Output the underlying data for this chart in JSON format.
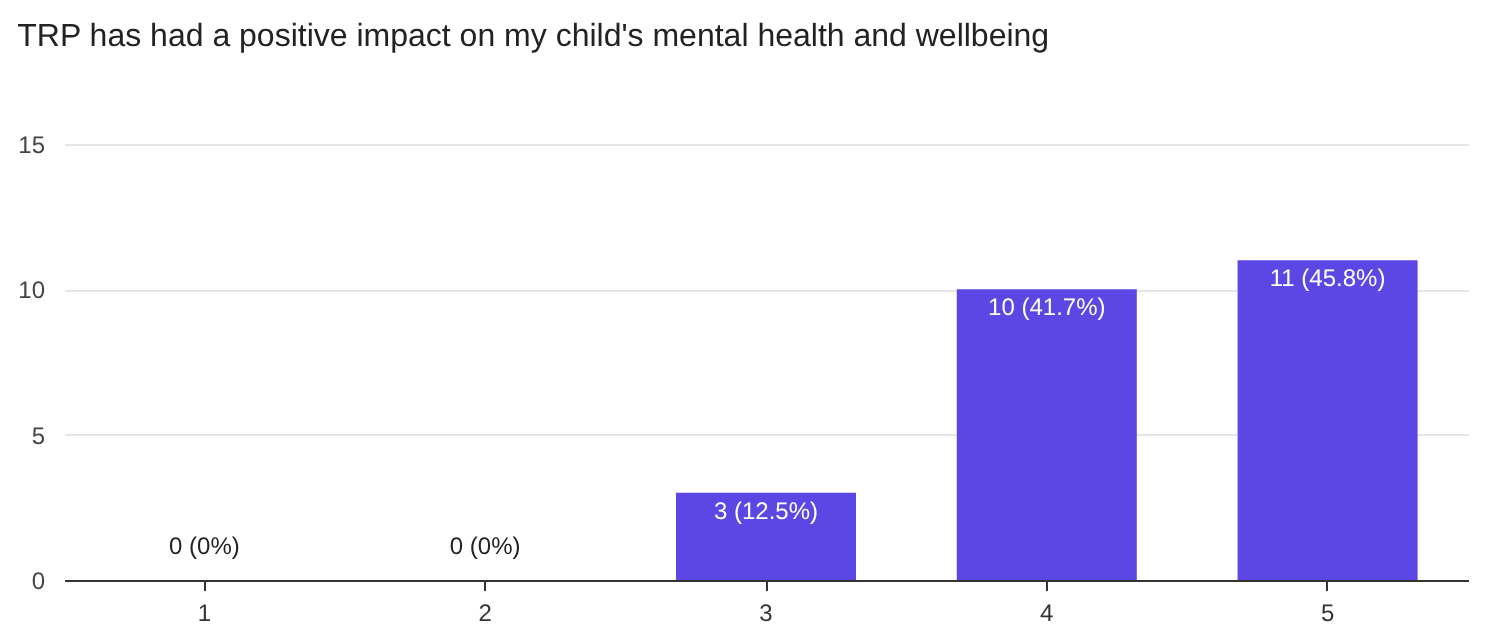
{
  "chart_data": {
    "type": "bar",
    "title": "TRP has had a positive impact on my child's mental health and wellbeing",
    "categories": [
      "1",
      "2",
      "3",
      "4",
      "5"
    ],
    "values": [
      0,
      0,
      3,
      10,
      11
    ],
    "value_labels": [
      "0 (0%)",
      "0 (0%)",
      "3 (12.5%)",
      "10 (41.7%)",
      "11 (45.8%)"
    ],
    "color": "#5c47e5",
    "ylim": [
      0,
      15
    ],
    "yticks": [
      0,
      5,
      10,
      15
    ],
    "grid": "y"
  }
}
